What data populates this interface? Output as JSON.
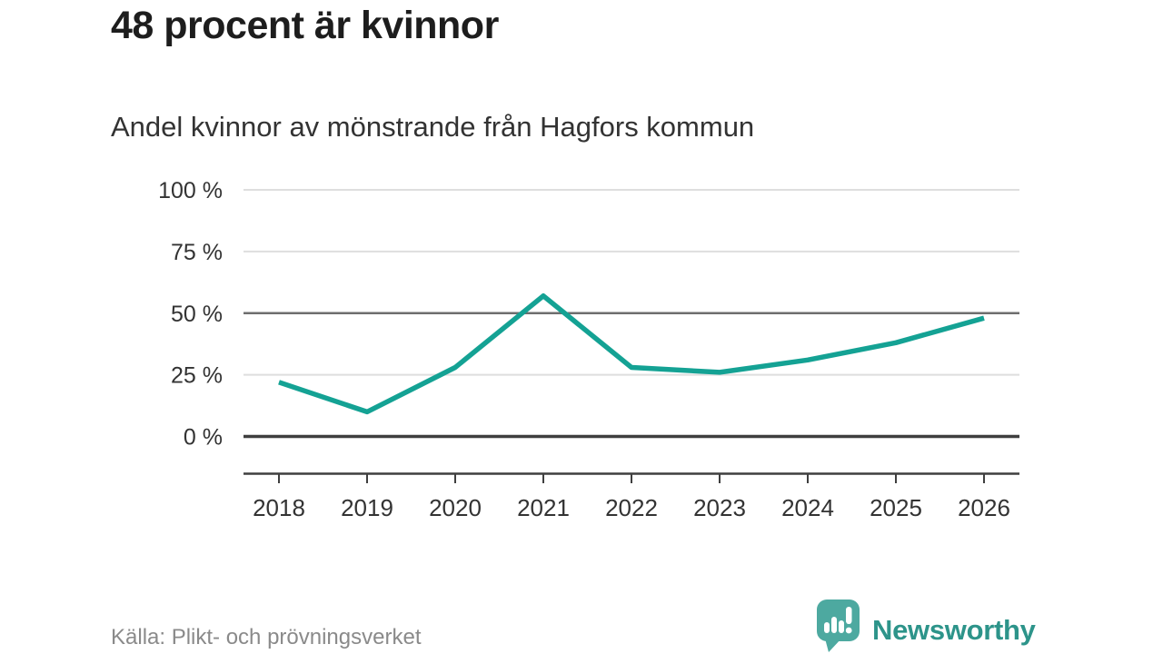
{
  "header": {
    "title": "48 procent är kvinnor",
    "subtitle": "Andel kvinnor av mönstrande från Hagfors kommun"
  },
  "footer": {
    "source": "Källa: Plikt- och prövningsverket",
    "brand": "Newsworthy"
  },
  "colors": {
    "line": "#14a294",
    "grid_light": "#dedede",
    "grid_mid": "#6e6e6e",
    "axis_dark": "#3f3f3f",
    "tick_label": "#333333",
    "logo_bubble": "#4da9a0",
    "logo_glyph": "#ffffff",
    "logo_text": "#2d948a",
    "source_text": "#8a8a8a"
  },
  "chart_data": {
    "type": "line",
    "title": "48 procent är kvinnor",
    "subtitle": "Andel kvinnor av mönstrande från Hagfors kommun",
    "x": [
      2018,
      2019,
      2020,
      2021,
      2022,
      2023,
      2024,
      2025,
      2026
    ],
    "series": [
      {
        "name": "Andel kvinnor av mönstrande från Hagfors kommun",
        "values": [
          22,
          10,
          28,
          57,
          28,
          26,
          31,
          38,
          48
        ]
      }
    ],
    "unit": "%",
    "xlabel": "",
    "ylabel": "",
    "ylim": [
      0,
      100
    ],
    "yticks": [
      0,
      25,
      50,
      75,
      100
    ],
    "ytick_labels": [
      "0 %",
      "25 %",
      "50 %",
      "75 %",
      "100 %"
    ],
    "emphasized_gridlines": [
      50
    ],
    "baseline_gridline": 0,
    "grid": true,
    "legend": false,
    "line_width": 5.5
  }
}
